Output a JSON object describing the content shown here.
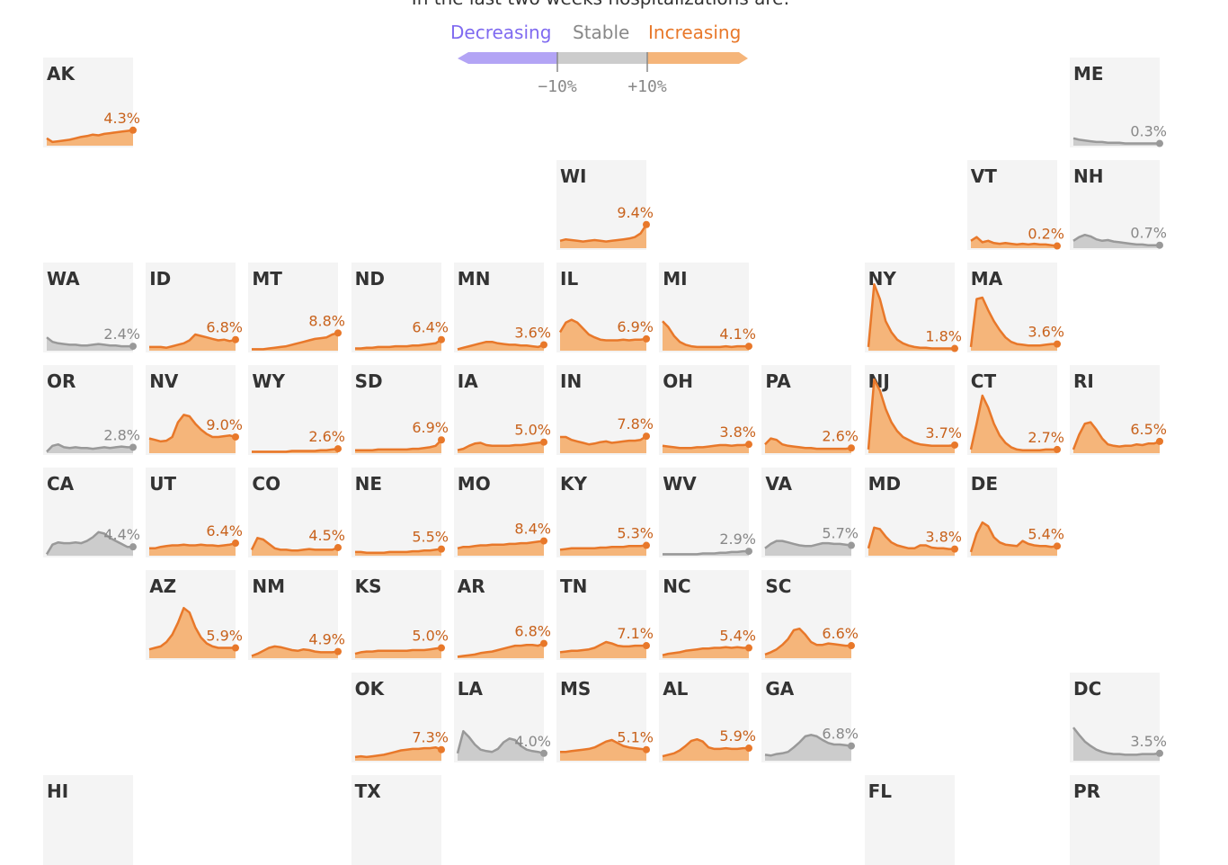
{
  "subtitle": "In the last two weeks hospitalizations are:",
  "legend": {
    "decreasing": "Decreasing",
    "stable": "Stable",
    "increasing": "Increasing",
    "low_tick": "−10%",
    "high_tick": "+10%",
    "colors": {
      "decreasing": "#b3a4f5",
      "stable": "#cccccc",
      "increasing": "#f5b57a",
      "decreasing_text": "#7f6af0",
      "stable_text": "#888888",
      "increasing_text": "#e8782a"
    }
  },
  "chart_data": {
    "type": "area",
    "title": "",
    "xlabel": "",
    "ylabel": "",
    "series": [
      {
        "state": "AK",
        "trend": "increasing",
        "label": "4.3%",
        "values": [
          0.1,
          0.05,
          0.06,
          0.07,
          0.08,
          0.1,
          0.12,
          0.13,
          0.15,
          0.14,
          0.16,
          0.17,
          0.18,
          0.19,
          0.2,
          0.21
        ]
      },
      {
        "state": "ME",
        "trend": "stable",
        "label": "0.3%",
        "values": [
          0.1,
          0.08,
          0.07,
          0.06,
          0.05,
          0.05,
          0.04,
          0.04,
          0.04,
          0.03,
          0.03,
          0.03,
          0.03,
          0.03,
          0.03,
          0.03
        ]
      },
      {
        "state": "WI",
        "trend": "increasing",
        "label": "9.4%",
        "values": [
          0.1,
          0.12,
          0.11,
          0.1,
          0.09,
          0.1,
          0.11,
          0.1,
          0.09,
          0.1,
          0.11,
          0.12,
          0.13,
          0.15,
          0.2,
          0.32
        ]
      },
      {
        "state": "VT",
        "trend": "increasing",
        "label": "0.2%",
        "values": [
          0.1,
          0.15,
          0.08,
          0.1,
          0.07,
          0.06,
          0.07,
          0.06,
          0.05,
          0.06,
          0.05,
          0.06,
          0.05,
          0.05,
          0.04,
          0.03
        ]
      },
      {
        "state": "NH",
        "trend": "stable",
        "label": "0.7%",
        "values": [
          0.1,
          0.15,
          0.18,
          0.16,
          0.12,
          0.1,
          0.11,
          0.09,
          0.08,
          0.07,
          0.06,
          0.05,
          0.05,
          0.04,
          0.04,
          0.04
        ]
      },
      {
        "state": "WA",
        "trend": "stable",
        "label": "2.4%",
        "values": [
          0.18,
          0.12,
          0.1,
          0.09,
          0.08,
          0.08,
          0.07,
          0.07,
          0.08,
          0.09,
          0.08,
          0.07,
          0.07,
          0.06,
          0.06,
          0.06
        ]
      },
      {
        "state": "ID",
        "trend": "increasing",
        "label": "6.8%",
        "values": [
          0.05,
          0.05,
          0.05,
          0.04,
          0.06,
          0.08,
          0.1,
          0.14,
          0.22,
          0.2,
          0.18,
          0.16,
          0.14,
          0.15,
          0.13,
          0.15
        ]
      },
      {
        "state": "MT",
        "trend": "increasing",
        "label": "8.8%",
        "values": [
          0.02,
          0.02,
          0.02,
          0.03,
          0.04,
          0.05,
          0.06,
          0.08,
          0.1,
          0.12,
          0.14,
          0.16,
          0.17,
          0.18,
          0.22,
          0.24
        ]
      },
      {
        "state": "ND",
        "trend": "increasing",
        "label": "6.4%",
        "values": [
          0.03,
          0.03,
          0.04,
          0.04,
          0.05,
          0.05,
          0.05,
          0.06,
          0.06,
          0.06,
          0.07,
          0.07,
          0.08,
          0.09,
          0.1,
          0.15
        ]
      },
      {
        "state": "MN",
        "trend": "increasing",
        "label": "3.6%",
        "values": [
          0.02,
          0.04,
          0.06,
          0.08,
          0.1,
          0.12,
          0.12,
          0.1,
          0.09,
          0.08,
          0.08,
          0.07,
          0.07,
          0.06,
          0.05,
          0.08
        ]
      },
      {
        "state": "IL",
        "trend": "increasing",
        "label": "6.9%",
        "values": [
          0.25,
          0.38,
          0.42,
          0.38,
          0.3,
          0.22,
          0.18,
          0.15,
          0.14,
          0.14,
          0.14,
          0.15,
          0.14,
          0.15,
          0.15,
          0.16
        ]
      },
      {
        "state": "MI",
        "trend": "increasing",
        "label": "4.1%",
        "values": [
          0.4,
          0.32,
          0.2,
          0.12,
          0.08,
          0.06,
          0.05,
          0.05,
          0.05,
          0.05,
          0.05,
          0.06,
          0.05,
          0.06,
          0.06,
          0.06
        ]
      },
      {
        "state": "NY",
        "trend": "increasing",
        "label": "1.8%",
        "values": [
          0.05,
          0.9,
          0.7,
          0.4,
          0.25,
          0.15,
          0.1,
          0.07,
          0.05,
          0.04,
          0.04,
          0.03,
          0.03,
          0.03,
          0.03,
          0.03
        ]
      },
      {
        "state": "MA",
        "trend": "increasing",
        "label": "3.6%",
        "values": [
          0.05,
          0.7,
          0.72,
          0.55,
          0.4,
          0.28,
          0.18,
          0.12,
          0.09,
          0.08,
          0.07,
          0.07,
          0.07,
          0.08,
          0.09,
          0.09
        ]
      },
      {
        "state": "OR",
        "trend": "stable",
        "label": "2.8%",
        "values": [
          0.02,
          0.1,
          0.12,
          0.08,
          0.07,
          0.08,
          0.07,
          0.07,
          0.06,
          0.07,
          0.08,
          0.07,
          0.08,
          0.09,
          0.08,
          0.08
        ]
      },
      {
        "state": "NV",
        "trend": "increasing",
        "label": "9.0%",
        "values": [
          0.2,
          0.18,
          0.16,
          0.17,
          0.22,
          0.42,
          0.52,
          0.5,
          0.4,
          0.32,
          0.26,
          0.22,
          0.22,
          0.23,
          0.24,
          0.22
        ]
      },
      {
        "state": "WY",
        "trend": "increasing",
        "label": "2.6%",
        "values": [
          0.02,
          0.02,
          0.02,
          0.02,
          0.02,
          0.02,
          0.02,
          0.03,
          0.03,
          0.03,
          0.03,
          0.03,
          0.04,
          0.04,
          0.05,
          0.06
        ]
      },
      {
        "state": "SD",
        "trend": "increasing",
        "label": "6.9%",
        "values": [
          0.04,
          0.04,
          0.04,
          0.04,
          0.05,
          0.05,
          0.05,
          0.05,
          0.05,
          0.05,
          0.06,
          0.06,
          0.07,
          0.08,
          0.1,
          0.18
        ]
      },
      {
        "state": "IA",
        "trend": "increasing",
        "label": "5.0%",
        "values": [
          0.04,
          0.06,
          0.1,
          0.13,
          0.14,
          0.11,
          0.1,
          0.1,
          0.1,
          0.1,
          0.11,
          0.11,
          0.12,
          0.13,
          0.14,
          0.15
        ]
      },
      {
        "state": "IN",
        "trend": "increasing",
        "label": "7.8%",
        "values": [
          0.22,
          0.22,
          0.18,
          0.16,
          0.14,
          0.12,
          0.13,
          0.15,
          0.16,
          0.14,
          0.15,
          0.16,
          0.17,
          0.17,
          0.18,
          0.23
        ]
      },
      {
        "state": "OH",
        "trend": "increasing",
        "label": "3.8%",
        "values": [
          0.1,
          0.09,
          0.08,
          0.07,
          0.07,
          0.07,
          0.08,
          0.08,
          0.09,
          0.1,
          0.11,
          0.11,
          0.1,
          0.11,
          0.11,
          0.12
        ]
      },
      {
        "state": "PA",
        "trend": "increasing",
        "label": "2.6%",
        "values": [
          0.12,
          0.2,
          0.18,
          0.12,
          0.1,
          0.09,
          0.08,
          0.07,
          0.07,
          0.06,
          0.06,
          0.06,
          0.06,
          0.06,
          0.06,
          0.07
        ]
      },
      {
        "state": "NJ",
        "trend": "increasing",
        "label": "3.7%",
        "values": [
          0.05,
          1.0,
          0.85,
          0.6,
          0.42,
          0.3,
          0.22,
          0.18,
          0.14,
          0.12,
          0.11,
          0.1,
          0.1,
          0.1,
          0.1,
          0.11
        ]
      },
      {
        "state": "CT",
        "trend": "increasing",
        "label": "2.7%",
        "values": [
          0.05,
          0.4,
          0.78,
          0.62,
          0.4,
          0.24,
          0.14,
          0.08,
          0.05,
          0.04,
          0.04,
          0.04,
          0.04,
          0.05,
          0.05,
          0.05
        ]
      },
      {
        "state": "RI",
        "trend": "increasing",
        "label": "6.5%",
        "values": [
          0.05,
          0.25,
          0.4,
          0.42,
          0.32,
          0.2,
          0.12,
          0.1,
          0.09,
          0.1,
          0.1,
          0.12,
          0.11,
          0.13,
          0.13,
          0.16
        ]
      },
      {
        "state": "CA",
        "trend": "stable",
        "label": "4.4%",
        "values": [
          0.02,
          0.15,
          0.18,
          0.17,
          0.17,
          0.18,
          0.17,
          0.2,
          0.25,
          0.32,
          0.3,
          0.24,
          0.2,
          0.16,
          0.12,
          0.12
        ]
      },
      {
        "state": "UT",
        "trend": "increasing",
        "label": "6.4%",
        "values": [
          0.1,
          0.1,
          0.12,
          0.13,
          0.14,
          0.14,
          0.15,
          0.14,
          0.14,
          0.15,
          0.14,
          0.14,
          0.13,
          0.14,
          0.15,
          0.17
        ]
      },
      {
        "state": "CO",
        "trend": "increasing",
        "label": "4.5%",
        "values": [
          0.08,
          0.24,
          0.22,
          0.16,
          0.1,
          0.08,
          0.08,
          0.07,
          0.07,
          0.08,
          0.09,
          0.08,
          0.08,
          0.08,
          0.08,
          0.11
        ]
      },
      {
        "state": "NE",
        "trend": "increasing",
        "label": "5.5%",
        "values": [
          0.05,
          0.05,
          0.04,
          0.04,
          0.04,
          0.04,
          0.05,
          0.05,
          0.05,
          0.05,
          0.06,
          0.06,
          0.07,
          0.07,
          0.08,
          0.09
        ]
      },
      {
        "state": "MO",
        "trend": "increasing",
        "label": "8.4%",
        "values": [
          0.1,
          0.12,
          0.12,
          0.13,
          0.14,
          0.14,
          0.15,
          0.15,
          0.15,
          0.16,
          0.16,
          0.17,
          0.17,
          0.18,
          0.19,
          0.2
        ]
      },
      {
        "state": "KY",
        "trend": "increasing",
        "label": "5.3%",
        "values": [
          0.08,
          0.09,
          0.1,
          0.1,
          0.1,
          0.1,
          0.1,
          0.11,
          0.11,
          0.12,
          0.12,
          0.12,
          0.13,
          0.13,
          0.13,
          0.14
        ]
      },
      {
        "state": "WV",
        "trend": "stable",
        "label": "2.9%",
        "values": [
          0.02,
          0.02,
          0.02,
          0.02,
          0.02,
          0.02,
          0.02,
          0.03,
          0.03,
          0.03,
          0.04,
          0.04,
          0.05,
          0.05,
          0.06,
          0.06
        ]
      },
      {
        "state": "VA",
        "trend": "stable",
        "label": "5.7%",
        "values": [
          0.1,
          0.16,
          0.2,
          0.2,
          0.18,
          0.16,
          0.14,
          0.13,
          0.13,
          0.15,
          0.17,
          0.17,
          0.16,
          0.16,
          0.15,
          0.14
        ]
      },
      {
        "state": "MD",
        "trend": "increasing",
        "label": "3.8%",
        "values": [
          0.1,
          0.38,
          0.36,
          0.26,
          0.18,
          0.14,
          0.12,
          0.1,
          0.1,
          0.14,
          0.14,
          0.11,
          0.1,
          0.1,
          0.09,
          0.09
        ]
      },
      {
        "state": "DE",
        "trend": "increasing",
        "label": "5.4%",
        "values": [
          0.05,
          0.3,
          0.45,
          0.4,
          0.25,
          0.18,
          0.15,
          0.14,
          0.13,
          0.2,
          0.16,
          0.14,
          0.13,
          0.13,
          0.12,
          0.13
        ]
      },
      {
        "state": "AZ",
        "trend": "increasing",
        "label": "5.9%",
        "values": [
          0.12,
          0.14,
          0.16,
          0.22,
          0.32,
          0.48,
          0.68,
          0.62,
          0.42,
          0.28,
          0.2,
          0.16,
          0.14,
          0.14,
          0.14,
          0.14
        ]
      },
      {
        "state": "NM",
        "trend": "increasing",
        "label": "4.9%",
        "values": [
          0.03,
          0.06,
          0.1,
          0.14,
          0.16,
          0.15,
          0.13,
          0.11,
          0.1,
          0.12,
          0.11,
          0.09,
          0.08,
          0.08,
          0.08,
          0.09
        ]
      },
      {
        "state": "KS",
        "trend": "increasing",
        "label": "5.0%",
        "values": [
          0.06,
          0.08,
          0.09,
          0.09,
          0.1,
          0.1,
          0.1,
          0.1,
          0.1,
          0.1,
          0.11,
          0.11,
          0.11,
          0.12,
          0.13,
          0.14
        ]
      },
      {
        "state": "AR",
        "trend": "increasing",
        "label": "6.8%",
        "values": [
          0.02,
          0.03,
          0.04,
          0.05,
          0.07,
          0.08,
          0.09,
          0.11,
          0.13,
          0.15,
          0.17,
          0.17,
          0.18,
          0.18,
          0.17,
          0.2
        ]
      },
      {
        "state": "TN",
        "trend": "increasing",
        "label": "7.1%",
        "values": [
          0.08,
          0.09,
          0.1,
          0.1,
          0.11,
          0.12,
          0.14,
          0.18,
          0.22,
          0.2,
          0.17,
          0.16,
          0.16,
          0.17,
          0.17,
          0.17
        ]
      },
      {
        "state": "NC",
        "trend": "increasing",
        "label": "5.4%",
        "values": [
          0.04,
          0.06,
          0.07,
          0.08,
          0.1,
          0.11,
          0.12,
          0.13,
          0.13,
          0.14,
          0.14,
          0.15,
          0.14,
          0.15,
          0.14,
          0.14
        ]
      },
      {
        "state": "SC",
        "trend": "increasing",
        "label": "6.6%",
        "values": [
          0.05,
          0.08,
          0.12,
          0.18,
          0.26,
          0.38,
          0.4,
          0.32,
          0.22,
          0.18,
          0.18,
          0.2,
          0.19,
          0.18,
          0.17,
          0.17
        ]
      },
      {
        "state": "OK",
        "trend": "increasing",
        "label": "7.3%",
        "values": [
          0.05,
          0.06,
          0.05,
          0.06,
          0.07,
          0.08,
          0.1,
          0.12,
          0.14,
          0.15,
          0.16,
          0.16,
          0.17,
          0.17,
          0.18,
          0.15
        ]
      },
      {
        "state": "LA",
        "trend": "stable",
        "label": "4.0%",
        "values": [
          0.1,
          0.4,
          0.32,
          0.22,
          0.15,
          0.13,
          0.12,
          0.16,
          0.25,
          0.3,
          0.28,
          0.2,
          0.15,
          0.13,
          0.12,
          0.1
        ]
      },
      {
        "state": "MS",
        "trend": "increasing",
        "label": "5.1%",
        "values": [
          0.12,
          0.12,
          0.13,
          0.14,
          0.15,
          0.16,
          0.18,
          0.22,
          0.26,
          0.28,
          0.24,
          0.2,
          0.18,
          0.17,
          0.16,
          0.15
        ]
      },
      {
        "state": "AL",
        "trend": "increasing",
        "label": "5.9%",
        "values": [
          0.06,
          0.08,
          0.1,
          0.14,
          0.2,
          0.27,
          0.29,
          0.26,
          0.18,
          0.16,
          0.16,
          0.17,
          0.16,
          0.16,
          0.17,
          0.17
        ]
      },
      {
        "state": "GA",
        "trend": "stable",
        "label": "6.8%",
        "values": [
          0.08,
          0.07,
          0.09,
          0.1,
          0.12,
          0.18,
          0.25,
          0.33,
          0.35,
          0.33,
          0.28,
          0.24,
          0.22,
          0.22,
          0.21,
          0.2
        ]
      },
      {
        "state": "DC",
        "trend": "stable",
        "label": "3.5%",
        "values": [
          0.45,
          0.35,
          0.26,
          0.2,
          0.15,
          0.12,
          0.1,
          0.09,
          0.09,
          0.08,
          0.08,
          0.08,
          0.09,
          0.09,
          0.09,
          0.1
        ]
      },
      {
        "state": "HI",
        "trend": "",
        "label": "",
        "values": []
      },
      {
        "state": "TX",
        "trend": "",
        "label": "",
        "values": []
      },
      {
        "state": "FL",
        "trend": "",
        "label": "",
        "values": []
      },
      {
        "state": "PR",
        "trend": "",
        "label": "",
        "values": []
      }
    ]
  }
}
